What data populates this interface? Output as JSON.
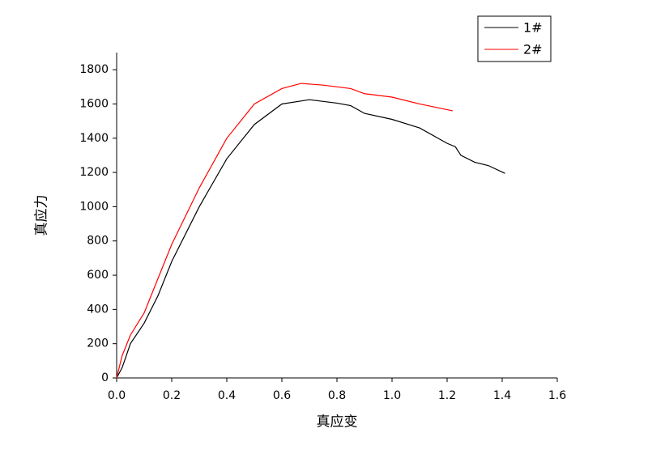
{
  "chart_data": {
    "type": "line",
    "xlabel": "真应变",
    "ylabel": "真应力",
    "xlim": [
      0,
      1.6
    ],
    "xticks": [
      {
        "value": 0,
        "label": "0.0"
      },
      0.2,
      0.4,
      0.6,
      0.8,
      {
        "value": 1,
        "label": "1.0"
      },
      1.2,
      1.4,
      1.6
    ],
    "ylim": [
      0,
      1900
    ],
    "yticks": [
      0,
      200,
      400,
      600,
      800,
      1000,
      1200,
      1400,
      1600,
      1800
    ],
    "legend": "top-right",
    "series": [
      {
        "name": "1#",
        "color": "#000000",
        "x": [
          0,
          0.02,
          0.05,
          0.1,
          0.15,
          0.2,
          0.3,
          0.4,
          0.5,
          0.6,
          0.7,
          0.8,
          0.85,
          0.9,
          1.0,
          1.1,
          1.2,
          1.23,
          1.25,
          1.3,
          1.35,
          1.41
        ],
        "values": [
          0,
          60,
          200,
          320,
          480,
          680,
          1000,
          1280,
          1480,
          1600,
          1625,
          1605,
          1590,
          1545,
          1510,
          1460,
          1370,
          1350,
          1300,
          1260,
          1240,
          1195
        ]
      },
      {
        "name": "2#",
        "color": "#ff0000",
        "x": [
          0,
          0.02,
          0.05,
          0.1,
          0.15,
          0.2,
          0.3,
          0.4,
          0.5,
          0.6,
          0.67,
          0.75,
          0.85,
          0.9,
          1.0,
          1.1,
          1.22
        ],
        "values": [
          0,
          130,
          250,
          380,
          580,
          780,
          1110,
          1400,
          1600,
          1690,
          1720,
          1710,
          1690,
          1660,
          1640,
          1600,
          1560
        ]
      }
    ]
  }
}
